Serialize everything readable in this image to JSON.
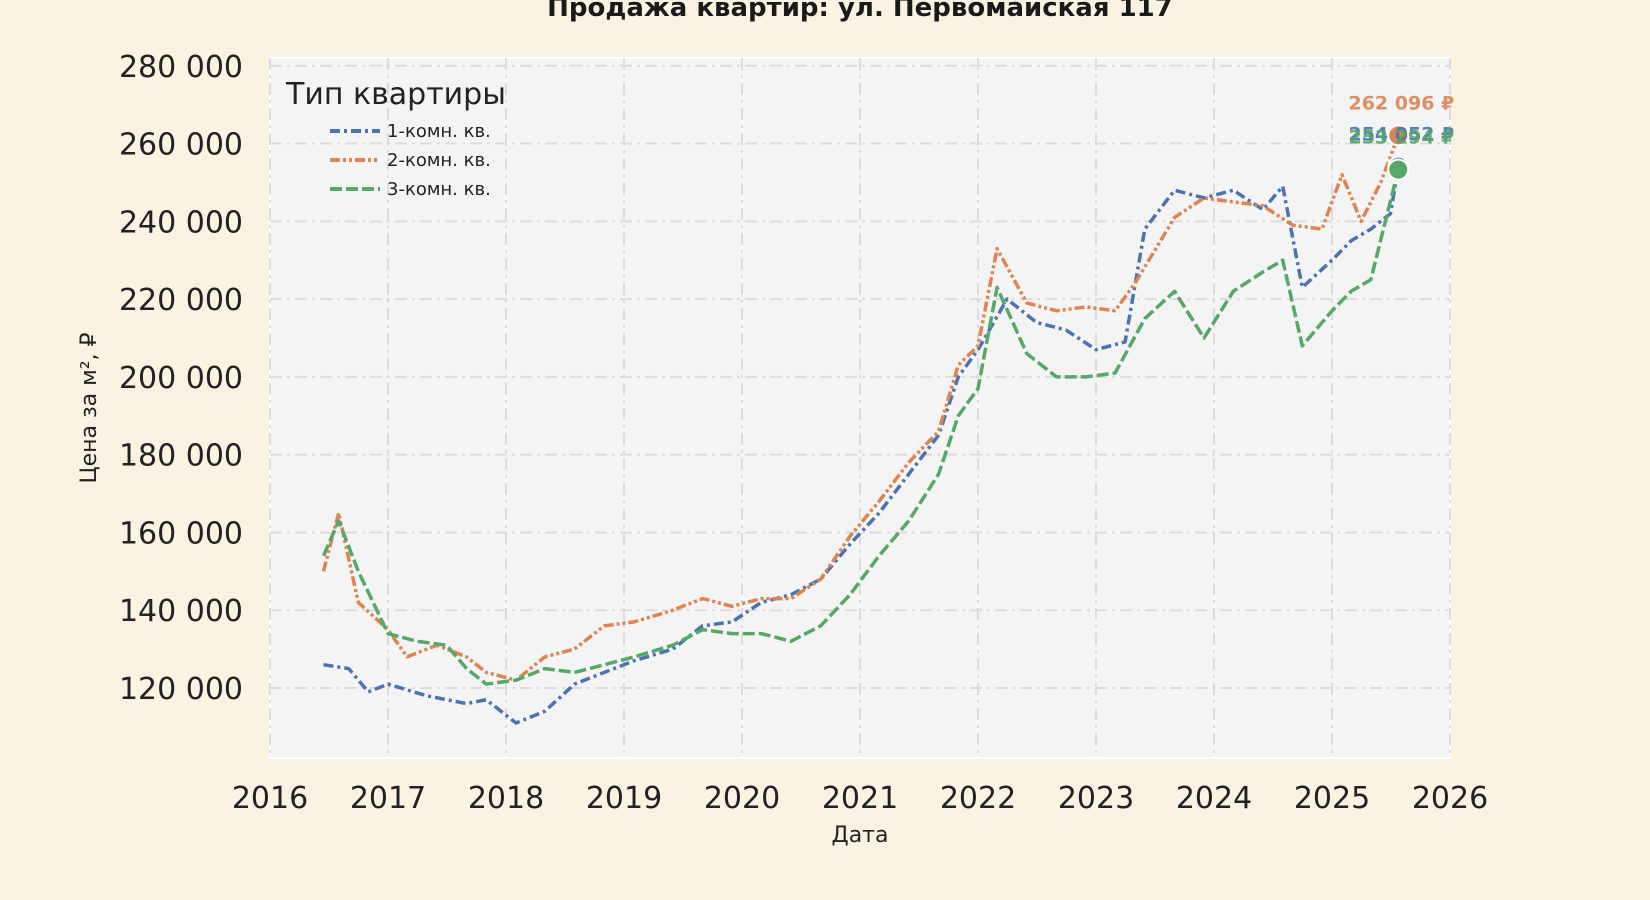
{
  "chart_data": {
    "type": "line",
    "title": "Продажа квартир: ул. Первомайская 117",
    "xlabel": "Дата",
    "ylabel": "Цена за м², ₽",
    "xlim": [
      "2016-01-01",
      "2026-01-01"
    ],
    "ylim": [
      102000,
      282000
    ],
    "x_ticks": [
      "2016",
      "2017",
      "2018",
      "2019",
      "2020",
      "2021",
      "2022",
      "2023",
      "2024",
      "2025",
      "2026"
    ],
    "y_ticks": [
      120000,
      140000,
      160000,
      180000,
      200000,
      220000,
      240000,
      260000,
      280000
    ],
    "y_tick_labels": [
      "120 000",
      "140 000",
      "160 000",
      "180 000",
      "200 000",
      "220 000",
      "240 000",
      "260 000",
      "280 000"
    ],
    "grid": true,
    "legend": {
      "title": "Тип квартиры",
      "placement": "top-left"
    },
    "series": [
      {
        "name": "1-комн. кв.",
        "color": "#4c72b0",
        "dash": "dash-dot",
        "x": [
          "2016-06-15",
          "2016-09-01",
          "2016-11-01",
          "2017-01-01",
          "2017-05-01",
          "2017-09-01",
          "2017-11-01",
          "2018-02-01",
          "2018-05-01",
          "2018-08-01",
          "2018-11-01",
          "2019-02-01",
          "2019-06-01",
          "2019-09-01",
          "2019-12-01",
          "2020-03-01",
          "2020-06-01",
          "2020-09-01",
          "2020-12-01",
          "2021-03-01",
          "2021-06-01",
          "2021-09-01",
          "2021-11-01",
          "2022-01-01",
          "2022-04-01",
          "2022-07-01",
          "2022-10-01",
          "2023-01-01",
          "2023-04-01",
          "2023-06-01",
          "2023-09-01",
          "2023-12-01",
          "2024-03-01",
          "2024-06-01",
          "2024-08-01",
          "2024-10-01",
          "2025-01-01",
          "2025-03-01",
          "2025-05-01",
          "2025-07-01",
          "2025-07-25"
        ],
        "y": [
          126000,
          125000,
          119000,
          121000,
          118000,
          116000,
          117000,
          111000,
          114000,
          121000,
          124000,
          127000,
          130000,
          136000,
          137000,
          142000,
          144000,
          148000,
          157000,
          165000,
          175000,
          185000,
          200000,
          207000,
          220000,
          214000,
          212000,
          207000,
          209000,
          238000,
          248000,
          246000,
          248000,
          243000,
          249000,
          223000,
          230000,
          235000,
          238000,
          242000,
          254052
        ]
      },
      {
        "name": "2-комн. кв.",
        "color": "#dd8452",
        "dash": "dash-dot-dot",
        "x": [
          "2016-06-15",
          "2016-08-01",
          "2016-10-01",
          "2017-01-01",
          "2017-03-01",
          "2017-06-01",
          "2017-09-01",
          "2017-11-01",
          "2018-02-01",
          "2018-05-01",
          "2018-08-01",
          "2018-11-01",
          "2019-02-01",
          "2019-06-01",
          "2019-09-01",
          "2019-12-01",
          "2020-03-01",
          "2020-06-01",
          "2020-09-01",
          "2020-12-01",
          "2021-03-01",
          "2021-06-01",
          "2021-09-01",
          "2021-11-01",
          "2022-01-01",
          "2022-03-01",
          "2022-06-01",
          "2022-09-01",
          "2022-12-01",
          "2023-03-01",
          "2023-05-01",
          "2023-09-01",
          "2023-12-01",
          "2024-03-01",
          "2024-06-01",
          "2024-09-01",
          "2024-12-01",
          "2025-02-01",
          "2025-04-01",
          "2025-06-01",
          "2025-07-25"
        ],
        "y": [
          150000,
          165000,
          142000,
          135000,
          128000,
          131000,
          128000,
          124000,
          122000,
          128000,
          130000,
          136000,
          137000,
          140000,
          143000,
          141000,
          143000,
          143000,
          148000,
          159000,
          168000,
          178000,
          186000,
          203000,
          208000,
          233000,
          219000,
          217000,
          218000,
          217000,
          224000,
          241000,
          246000,
          245000,
          244000,
          239000,
          238000,
          252000,
          240000,
          250000,
          262096
        ]
      },
      {
        "name": "3-комн. кв.",
        "color": "#55a868",
        "dash": "long-dash",
        "x": [
          "2016-06-15",
          "2016-08-01",
          "2016-10-01",
          "2017-01-01",
          "2017-04-01",
          "2017-07-01",
          "2017-09-01",
          "2017-11-01",
          "2018-02-01",
          "2018-05-01",
          "2018-08-01",
          "2018-11-01",
          "2019-02-01",
          "2019-06-01",
          "2019-09-01",
          "2019-12-01",
          "2020-03-01",
          "2020-06-01",
          "2020-09-01",
          "2020-12-01",
          "2021-03-01",
          "2021-06-01",
          "2021-09-01",
          "2021-11-01",
          "2022-01-01",
          "2022-03-01",
          "2022-06-01",
          "2022-09-01",
          "2022-12-01",
          "2023-03-01",
          "2023-06-01",
          "2023-09-01",
          "2023-12-01",
          "2024-03-01",
          "2024-06-01",
          "2024-08-01",
          "2024-10-01",
          "2025-01-01",
          "2025-03-01",
          "2025-05-01",
          "2025-07-25"
        ],
        "y": [
          154000,
          163000,
          150000,
          134000,
          132000,
          131000,
          125000,
          121000,
          122000,
          125000,
          124000,
          126000,
          128000,
          131000,
          135000,
          134000,
          134000,
          132000,
          136000,
          144000,
          154000,
          163000,
          175000,
          190000,
          197000,
          223000,
          206000,
          200000,
          200000,
          201000,
          215000,
          222000,
          210000,
          222000,
          227000,
          230000,
          208000,
          217000,
          222000,
          225000,
          253294
        ]
      }
    ],
    "annotations": [
      {
        "text": "262 096 ₽",
        "x": "2025-07-25",
        "y": 262096,
        "color": "#dd8452"
      },
      {
        "text": "254 052 ₽",
        "x": "2025-07-25",
        "y": 254052,
        "color": "#4c72b0"
      },
      {
        "text": "253 294 ₽",
        "x": "2025-07-25",
        "y": 253294,
        "color": "#55a868"
      }
    ]
  }
}
